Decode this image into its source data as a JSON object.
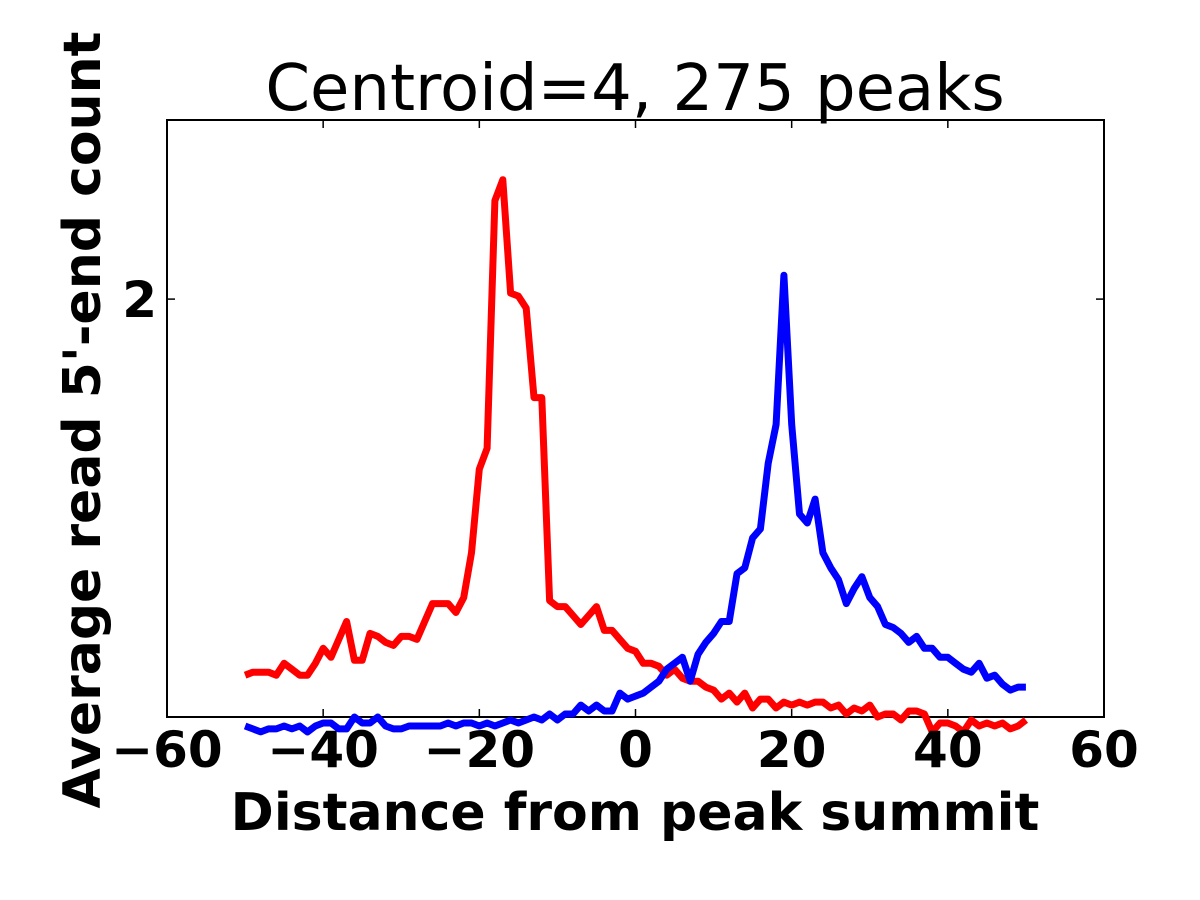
{
  "chart_data": {
    "type": "line",
    "title": "Centroid=4, 275 peaks",
    "xlabel": "Distance from peak summit",
    "ylabel": "Average read 5'-end count",
    "xlim": [
      -60,
      60
    ],
    "ylim": [
      0.6,
      2.6
    ],
    "x_ticks": [
      -60,
      -40,
      -20,
      0,
      20,
      40,
      60
    ],
    "x_tick_labels": [
      "−60",
      "−40",
      "−20",
      "0",
      "20",
      "40",
      "60"
    ],
    "y_ticks": [
      2
    ],
    "y_tick_labels": [
      "2"
    ],
    "grid": false,
    "legend": "none",
    "series": [
      {
        "color": "#ff0000",
        "points": [
          [
            -50,
            0.74
          ],
          [
            -49,
            0.75
          ],
          [
            -48,
            0.75
          ],
          [
            -47,
            0.75
          ],
          [
            -46,
            0.74
          ],
          [
            -45,
            0.78
          ],
          [
            -44,
            0.76
          ],
          [
            -43,
            0.74
          ],
          [
            -42,
            0.74
          ],
          [
            -41,
            0.78
          ],
          [
            -40,
            0.83
          ],
          [
            -39,
            0.8
          ],
          [
            -38,
            0.86
          ],
          [
            -37,
            0.92
          ],
          [
            -36,
            0.79
          ],
          [
            -35,
            0.79
          ],
          [
            -34,
            0.88
          ],
          [
            -33,
            0.87
          ],
          [
            -32,
            0.85
          ],
          [
            -31,
            0.84
          ],
          [
            -30,
            0.87
          ],
          [
            -29,
            0.87
          ],
          [
            -28,
            0.86
          ],
          [
            -27,
            0.92
          ],
          [
            -26,
            0.98
          ],
          [
            -25,
            0.98
          ],
          [
            -24,
            0.98
          ],
          [
            -23,
            0.95
          ],
          [
            -22,
            1.0
          ],
          [
            -21,
            1.15
          ],
          [
            -20,
            1.43
          ],
          [
            -19,
            1.5
          ],
          [
            -18,
            2.33
          ],
          [
            -17,
            2.4
          ],
          [
            -16,
            2.02
          ],
          [
            -15,
            2.01
          ],
          [
            -14,
            1.97
          ],
          [
            -13,
            1.67
          ],
          [
            -12,
            1.67
          ],
          [
            -11,
            0.99
          ],
          [
            -10,
            0.97
          ],
          [
            -9,
            0.97
          ],
          [
            -8,
            0.94
          ],
          [
            -7,
            0.91
          ],
          [
            -6,
            0.94
          ],
          [
            -5,
            0.97
          ],
          [
            -4,
            0.89
          ],
          [
            -3,
            0.89
          ],
          [
            -2,
            0.86
          ],
          [
            -1,
            0.83
          ],
          [
            0,
            0.82
          ],
          [
            1,
            0.78
          ],
          [
            2,
            0.78
          ],
          [
            3,
            0.77
          ],
          [
            4,
            0.74
          ],
          [
            5,
            0.76
          ],
          [
            6,
            0.73
          ],
          [
            7,
            0.72
          ],
          [
            8,
            0.72
          ],
          [
            9,
            0.7
          ],
          [
            10,
            0.69
          ],
          [
            11,
            0.66
          ],
          [
            12,
            0.68
          ],
          [
            13,
            0.65
          ],
          [
            14,
            0.68
          ],
          [
            15,
            0.63
          ],
          [
            16,
            0.66
          ],
          [
            17,
            0.66
          ],
          [
            18,
            0.63
          ],
          [
            19,
            0.65
          ],
          [
            20,
            0.64
          ],
          [
            21,
            0.65
          ],
          [
            22,
            0.64
          ],
          [
            23,
            0.65
          ],
          [
            24,
            0.65
          ],
          [
            25,
            0.63
          ],
          [
            26,
            0.64
          ],
          [
            27,
            0.61
          ],
          [
            28,
            0.63
          ],
          [
            29,
            0.62
          ],
          [
            30,
            0.64
          ],
          [
            31,
            0.6
          ],
          [
            32,
            0.61
          ],
          [
            33,
            0.61
          ],
          [
            34,
            0.59
          ],
          [
            35,
            0.62
          ],
          [
            36,
            0.62
          ],
          [
            37,
            0.61
          ],
          [
            38,
            0.55
          ],
          [
            39,
            0.58
          ],
          [
            40,
            0.58
          ],
          [
            41,
            0.57
          ],
          [
            42,
            0.55
          ],
          [
            43,
            0.59
          ],
          [
            44,
            0.57
          ],
          [
            45,
            0.58
          ],
          [
            46,
            0.57
          ],
          [
            47,
            0.58
          ],
          [
            48,
            0.56
          ],
          [
            49,
            0.57
          ],
          [
            50,
            0.59
          ]
        ]
      },
      {
        "color": "#0000ff",
        "points": [
          [
            -50,
            0.57
          ],
          [
            -49,
            0.56
          ],
          [
            -48,
            0.55
          ],
          [
            -47,
            0.56
          ],
          [
            -46,
            0.56
          ],
          [
            -45,
            0.57
          ],
          [
            -44,
            0.56
          ],
          [
            -43,
            0.57
          ],
          [
            -42,
            0.55
          ],
          [
            -41,
            0.57
          ],
          [
            -40,
            0.58
          ],
          [
            -39,
            0.58
          ],
          [
            -38,
            0.56
          ],
          [
            -37,
            0.56
          ],
          [
            -36,
            0.6
          ],
          [
            -35,
            0.58
          ],
          [
            -34,
            0.58
          ],
          [
            -33,
            0.6
          ],
          [
            -32,
            0.57
          ],
          [
            -31,
            0.56
          ],
          [
            -30,
            0.56
          ],
          [
            -29,
            0.57
          ],
          [
            -28,
            0.57
          ],
          [
            -27,
            0.57
          ],
          [
            -26,
            0.57
          ],
          [
            -25,
            0.57
          ],
          [
            -24,
            0.58
          ],
          [
            -23,
            0.57
          ],
          [
            -22,
            0.58
          ],
          [
            -21,
            0.58
          ],
          [
            -20,
            0.57
          ],
          [
            -19,
            0.58
          ],
          [
            -18,
            0.57
          ],
          [
            -17,
            0.58
          ],
          [
            -16,
            0.59
          ],
          [
            -15,
            0.58
          ],
          [
            -14,
            0.59
          ],
          [
            -13,
            0.6
          ],
          [
            -12,
            0.59
          ],
          [
            -11,
            0.61
          ],
          [
            -10,
            0.59
          ],
          [
            -9,
            0.61
          ],
          [
            -8,
            0.61
          ],
          [
            -7,
            0.64
          ],
          [
            -6,
            0.62
          ],
          [
            -5,
            0.64
          ],
          [
            -4,
            0.62
          ],
          [
            -3,
            0.62
          ],
          [
            -2,
            0.68
          ],
          [
            -1,
            0.66
          ],
          [
            0,
            0.67
          ],
          [
            1,
            0.68
          ],
          [
            2,
            0.7
          ],
          [
            3,
            0.72
          ],
          [
            4,
            0.76
          ],
          [
            5,
            0.78
          ],
          [
            6,
            0.8
          ],
          [
            7,
            0.72
          ],
          [
            8,
            0.81
          ],
          [
            9,
            0.85
          ],
          [
            10,
            0.88
          ],
          [
            11,
            0.92
          ],
          [
            12,
            0.92
          ],
          [
            13,
            1.08
          ],
          [
            14,
            1.1
          ],
          [
            15,
            1.2
          ],
          [
            16,
            1.23
          ],
          [
            17,
            1.45
          ],
          [
            18,
            1.58
          ],
          [
            19,
            2.08
          ],
          [
            20,
            1.58
          ],
          [
            21,
            1.28
          ],
          [
            22,
            1.25
          ],
          [
            23,
            1.33
          ],
          [
            24,
            1.15
          ],
          [
            25,
            1.1
          ],
          [
            26,
            1.06
          ],
          [
            27,
            0.98
          ],
          [
            28,
            1.03
          ],
          [
            29,
            1.07
          ],
          [
            30,
            1.0
          ],
          [
            31,
            0.97
          ],
          [
            32,
            0.91
          ],
          [
            33,
            0.9
          ],
          [
            34,
            0.88
          ],
          [
            35,
            0.85
          ],
          [
            36,
            0.87
          ],
          [
            37,
            0.83
          ],
          [
            38,
            0.83
          ],
          [
            39,
            0.8
          ],
          [
            40,
            0.8
          ],
          [
            41,
            0.78
          ],
          [
            42,
            0.76
          ],
          [
            43,
            0.75
          ],
          [
            44,
            0.78
          ],
          [
            45,
            0.73
          ],
          [
            46,
            0.74
          ],
          [
            47,
            0.71
          ],
          [
            48,
            0.69
          ],
          [
            49,
            0.7
          ],
          [
            50,
            0.7
          ]
        ]
      }
    ]
  }
}
